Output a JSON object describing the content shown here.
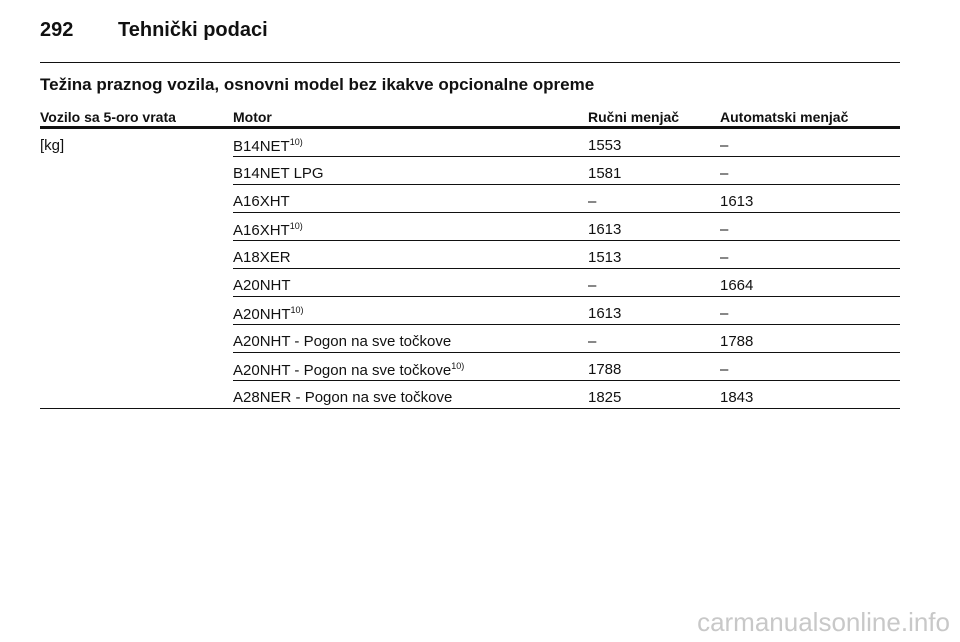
{
  "header": {
    "page": "292",
    "title": "Tehnički podaci"
  },
  "table": {
    "title": "Težina praznog vozila, osnovni model bez ikakve opcionalne opreme",
    "columns": [
      "Vozilo sa 5-oro vrata",
      "Motor",
      "Ručni menjač",
      "Automatski menjač"
    ],
    "unit": "[kg]",
    "rows": [
      {
        "motor": "B14NET",
        "note": "10)",
        "manual": "1553",
        "automatic": "–"
      },
      {
        "motor": "B14NET LPG",
        "manual": "1581",
        "automatic": "–"
      },
      {
        "motor": "A16XHT",
        "manual": "–",
        "automatic": "1613"
      },
      {
        "motor": "A16XHT",
        "note": "10)",
        "manual": "1613",
        "automatic": "–"
      },
      {
        "motor": "A18XER",
        "manual": "1513",
        "automatic": "–"
      },
      {
        "motor": "A20NHT",
        "manual": "–",
        "automatic": "1664"
      },
      {
        "motor": "A20NHT",
        "note": "10)",
        "manual": "1613",
        "automatic": "–"
      },
      {
        "motor": "A20NHT - Pogon na sve točkove",
        "manual": "–",
        "automatic": "1788"
      },
      {
        "motor": "A20NHT - Pogon na sve točkove",
        "note": "10)",
        "manual": "1788",
        "automatic": "–"
      },
      {
        "motor": "A28NER - Pogon na sve točkove",
        "manual": "1825",
        "automatic": "1843"
      }
    ]
  },
  "watermark": "carmanualsonline.info"
}
